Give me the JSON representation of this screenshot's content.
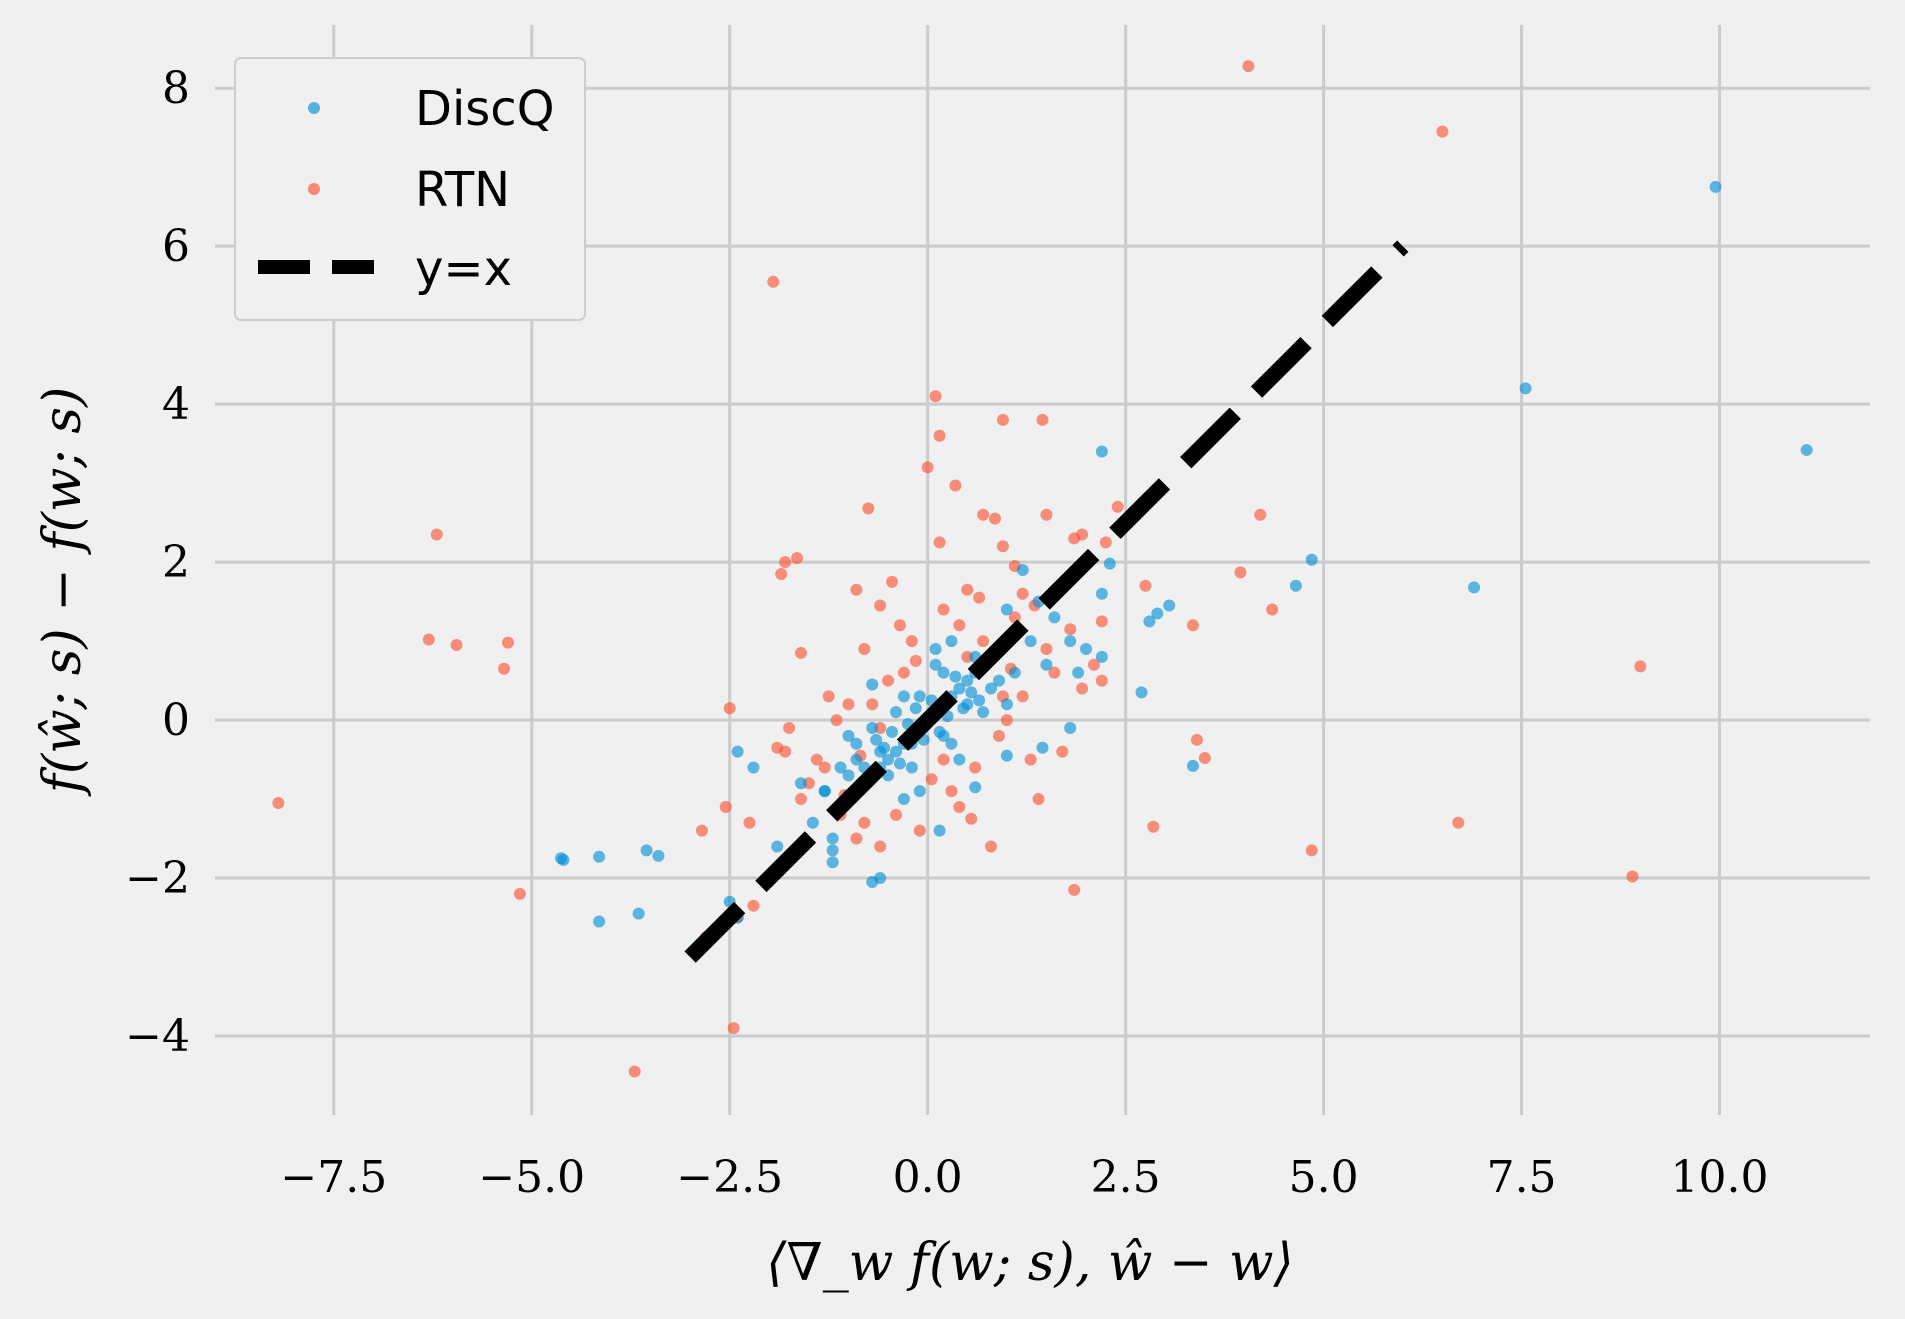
{
  "chart_data": {
    "type": "scatter",
    "title": "",
    "xlabel": "⟨∇_w f(w; s), ŵ − w⟩",
    "ylabel": "f(ŵ; s) − f(w; s)",
    "xlim": [
      -9.0,
      11.9
    ],
    "ylim": [
      -5.0,
      8.8
    ],
    "xticks": [
      -7.5,
      -5.0,
      -2.5,
      0.0,
      2.5,
      5.0,
      7.5,
      10.0
    ],
    "xtick_labels": [
      "−7.5",
      "−5.0",
      "−2.5",
      "0.0",
      "2.5",
      "5.0",
      "7.5",
      "10.0"
    ],
    "yticks": [
      -4,
      -2,
      0,
      2,
      4,
      6,
      8
    ],
    "ytick_labels": [
      "−4",
      "−2",
      "0",
      "2",
      "4",
      "6",
      "8"
    ],
    "grid": true,
    "legend_position": "top-left",
    "series": [
      {
        "name": "DiscQ",
        "color": "#008fd5",
        "marker": "circle",
        "points": [
          [
            9.95,
            6.75
          ],
          [
            7.55,
            4.2
          ],
          [
            11.1,
            3.42
          ],
          [
            6.9,
            1.68
          ],
          [
            4.85,
            2.03
          ],
          [
            4.65,
            1.7
          ],
          [
            3.05,
            1.45
          ],
          [
            2.9,
            1.35
          ],
          [
            2.8,
            1.25
          ],
          [
            3.35,
            -0.58
          ],
          [
            2.7,
            0.35
          ],
          [
            2.2,
            3.4
          ],
          [
            2.3,
            1.98
          ],
          [
            2.2,
            1.6
          ],
          [
            2.2,
            0.8
          ],
          [
            1.8,
            -0.1
          ],
          [
            1.5,
            0.7
          ],
          [
            1.45,
            -0.35
          ],
          [
            1.0,
            -0.45
          ],
          [
            0.6,
            -0.85
          ],
          [
            0.15,
            -1.4
          ],
          [
            -0.7,
            -2.05
          ],
          [
            -0.6,
            -2.0
          ],
          [
            -1.2,
            -1.8
          ],
          [
            -1.2,
            -1.65
          ],
          [
            -1.2,
            -1.5
          ],
          [
            -1.45,
            -1.3
          ],
          [
            -2.4,
            -2.5
          ],
          [
            -2.5,
            -2.3
          ],
          [
            -3.65,
            -2.45
          ],
          [
            -4.15,
            -2.55
          ],
          [
            -4.6,
            -1.77
          ],
          [
            -4.63,
            -1.75
          ],
          [
            -4.15,
            -1.73
          ],
          [
            -3.55,
            -1.65
          ],
          [
            -3.4,
            -1.72
          ],
          [
            -2.4,
            -0.4
          ],
          [
            -2.2,
            -0.6
          ],
          [
            -1.9,
            -1.6
          ],
          [
            -1.6,
            -0.8
          ],
          [
            -1.3,
            -0.9
          ],
          [
            -1.0,
            -0.95
          ],
          [
            -0.9,
            -0.3
          ],
          [
            -0.7,
            0.45
          ],
          [
            -0.5,
            -0.7
          ],
          [
            -0.3,
            -1.0
          ],
          [
            -0.2,
            -0.3
          ],
          [
            -0.1,
            0.3
          ],
          [
            0.1,
            0.7
          ],
          [
            0.3,
            1.0
          ],
          [
            0.5,
            0.2
          ],
          [
            0.6,
            0.8
          ],
          [
            0.8,
            0.4
          ],
          [
            1.0,
            1.4
          ],
          [
            1.2,
            1.9
          ],
          [
            1.4,
            1.5
          ],
          [
            1.6,
            1.3
          ],
          [
            1.8,
            1.0
          ],
          [
            2.0,
            0.9
          ],
          [
            1.9,
            0.6
          ],
          [
            0.2,
            -0.2
          ],
          [
            0.4,
            -0.5
          ],
          [
            -0.4,
            0.1
          ],
          [
            -0.6,
            -0.4
          ],
          [
            -0.8,
            -0.6
          ],
          [
            -1.0,
            -0.7
          ],
          [
            0.0,
            0.0
          ],
          [
            0.1,
            0.1
          ],
          [
            -0.1,
            -0.1
          ],
          [
            0.2,
            0.2
          ],
          [
            -0.2,
            -0.2
          ],
          [
            0.3,
            0.3
          ],
          [
            -0.3,
            -0.3
          ],
          [
            0.4,
            0.4
          ],
          [
            -0.4,
            -0.4
          ],
          [
            0.5,
            0.5
          ],
          [
            -0.5,
            -0.5
          ],
          [
            0.6,
            0.6
          ],
          [
            -0.6,
            -0.6
          ],
          [
            0.7,
            0.7
          ],
          [
            -0.7,
            -0.7
          ],
          [
            0.8,
            0.8
          ],
          [
            -0.8,
            -0.8
          ],
          [
            0.05,
            0.25
          ],
          [
            0.25,
            0.05
          ],
          [
            -0.05,
            -0.25
          ],
          [
            -0.25,
            -0.05
          ],
          [
            0.35,
            0.55
          ],
          [
            0.55,
            0.35
          ],
          [
            -0.35,
            -0.55
          ],
          [
            -0.55,
            -0.35
          ],
          [
            0.15,
            -0.15
          ],
          [
            -0.15,
            0.15
          ],
          [
            0.45,
            0.15
          ],
          [
            -0.45,
            -0.15
          ],
          [
            0.65,
            0.25
          ],
          [
            -0.65,
            -0.25
          ],
          [
            0.2,
            0.6
          ],
          [
            -0.2,
            -0.6
          ],
          [
            0.9,
            0.5
          ],
          [
            -0.9,
            -0.5
          ],
          [
            1.1,
            0.6
          ],
          [
            -1.1,
            -0.6
          ],
          [
            0.3,
            -0.3
          ],
          [
            -0.3,
            0.3
          ],
          [
            0.7,
            0.1
          ],
          [
            -0.7,
            -0.1
          ],
          [
            1.3,
            1.0
          ],
          [
            -1.3,
            -0.9
          ],
          [
            0.1,
            0.9
          ],
          [
            -0.1,
            -0.9
          ],
          [
            1.0,
            0.2
          ],
          [
            -1.0,
            -0.2
          ]
        ]
      },
      {
        "name": "RTN",
        "color": "#fc4f30",
        "marker": "circle",
        "points": [
          [
            4.05,
            8.28
          ],
          [
            6.5,
            7.45
          ],
          [
            -1.95,
            5.55
          ],
          [
            0.1,
            4.1
          ],
          [
            0.15,
            3.6
          ],
          [
            1.45,
            3.8
          ],
          [
            0.95,
            3.8
          ],
          [
            0.0,
            3.2
          ],
          [
            0.35,
            2.97
          ],
          [
            -0.75,
            2.68
          ],
          [
            0.7,
            2.6
          ],
          [
            0.85,
            2.55
          ],
          [
            1.5,
            2.6
          ],
          [
            2.6,
            2.6
          ],
          [
            2.4,
            2.7
          ],
          [
            4.2,
            2.6
          ],
          [
            0.15,
            2.25
          ],
          [
            -1.65,
            2.05
          ],
          [
            -1.8,
            2.0
          ],
          [
            -1.85,
            1.85
          ],
          [
            0.95,
            2.2
          ],
          [
            1.1,
            1.95
          ],
          [
            1.85,
            2.3
          ],
          [
            1.95,
            2.35
          ],
          [
            3.95,
            1.87
          ],
          [
            2.75,
            1.7
          ],
          [
            3.35,
            1.2
          ],
          [
            4.35,
            1.4
          ],
          [
            -0.9,
            1.65
          ],
          [
            -0.45,
            1.75
          ],
          [
            -0.6,
            1.45
          ],
          [
            0.5,
            1.65
          ],
          [
            0.65,
            1.55
          ],
          [
            1.1,
            1.3
          ],
          [
            -1.6,
            0.85
          ],
          [
            -0.8,
            0.9
          ],
          [
            2.1,
            0.7
          ],
          [
            2.2,
            0.5
          ],
          [
            -6.2,
            2.35
          ],
          [
            -6.3,
            1.02
          ],
          [
            -5.95,
            0.95
          ],
          [
            -5.3,
            0.98
          ],
          [
            -5.35,
            0.65
          ],
          [
            -8.2,
            -1.05
          ],
          [
            -5.15,
            -2.2
          ],
          [
            -3.7,
            -4.45
          ],
          [
            -2.45,
            -3.9
          ],
          [
            -2.8,
            -2.75
          ],
          [
            -2.4,
            -2.5
          ],
          [
            -2.2,
            -2.35
          ],
          [
            -2.85,
            -1.4
          ],
          [
            -2.55,
            -1.1
          ],
          [
            -2.5,
            0.15
          ],
          [
            -2.25,
            -1.3
          ],
          [
            -1.8,
            -0.4
          ],
          [
            -1.75,
            -0.1
          ],
          [
            -1.6,
            -1.0
          ],
          [
            -1.9,
            -0.35
          ],
          [
            -1.25,
            0.3
          ],
          [
            -1.3,
            -0.6
          ],
          [
            -1.1,
            -1.2
          ],
          [
            -0.9,
            -1.5
          ],
          [
            -0.8,
            -1.3
          ],
          [
            -0.6,
            -1.6
          ],
          [
            -0.4,
            -1.2
          ],
          [
            -0.1,
            -1.4
          ],
          [
            0.4,
            -1.1
          ],
          [
            0.8,
            -1.6
          ],
          [
            0.55,
            -1.25
          ],
          [
            1.4,
            -1.0
          ],
          [
            1.7,
            -0.4
          ],
          [
            1.85,
            -2.15
          ],
          [
            2.85,
            -1.35
          ],
          [
            3.4,
            -0.25
          ],
          [
            3.5,
            -0.48
          ],
          [
            4.85,
            -1.65
          ],
          [
            6.7,
            -1.3
          ],
          [
            8.9,
            -1.98
          ],
          [
            9.0,
            0.68
          ],
          [
            1.3,
            -0.5
          ],
          [
            1.0,
            0.0
          ],
          [
            1.2,
            0.3
          ],
          [
            -0.2,
            1.0
          ],
          [
            -0.35,
            1.2
          ],
          [
            0.2,
            1.4
          ],
          [
            0.4,
            1.2
          ],
          [
            -1.0,
            0.2
          ],
          [
            -1.15,
            0.0
          ],
          [
            0.6,
            -0.6
          ],
          [
            0.9,
            -0.2
          ],
          [
            -0.5,
            0.5
          ],
          [
            -0.7,
            0.2
          ],
          [
            0.3,
            -0.9
          ],
          [
            1.5,
            0.9
          ],
          [
            1.6,
            0.6
          ],
          [
            1.95,
            0.4
          ],
          [
            -1.4,
            -0.5
          ],
          [
            -1.5,
            -0.8
          ],
          [
            0.5,
            0.8
          ],
          [
            0.2,
            -0.5
          ],
          [
            -0.3,
            0.6
          ],
          [
            0.7,
            1.0
          ],
          [
            1.05,
            0.65
          ],
          [
            -0.85,
            -0.45
          ],
          [
            1.35,
            1.45
          ],
          [
            1.8,
            1.15
          ],
          [
            -1.05,
            -0.95
          ],
          [
            -0.15,
            0.75
          ],
          [
            0.05,
            -0.75
          ],
          [
            0.95,
            0.3
          ],
          [
            -0.6,
            -0.1
          ],
          [
            1.2,
            1.6
          ],
          [
            2.2,
            1.25
          ],
          [
            2.25,
            2.25
          ]
        ]
      }
    ],
    "reference_line": {
      "name": "y=x",
      "color": "#000000",
      "style": "dashed",
      "x": [
        -3.0,
        6.0
      ],
      "y": [
        -3.0,
        6.0
      ]
    }
  }
}
